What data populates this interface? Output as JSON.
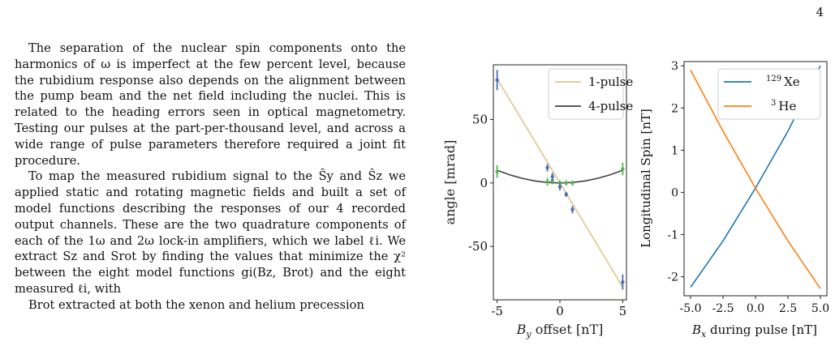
{
  "page_number": "4",
  "paragraphs": [
    "The separation of the nuclear spin components onto the harmonics of ω is imperfect at the few percent level, because the rubidium response also depends on the alignment between the pump beam and the net field including the nuclei. This is related to the heading errors seen in optical magnetometry. Testing our pulses at the part-per-thousand level, and across a wide range of pulse parameters therefore required a joint fit procedure.",
    "To map the measured rubidium signal to the Ŝy and Ŝz we applied static and rotating magnetic fields and built a set of model functions describing the responses of our 4 recorded output channels. These are the two quadrature components of each of the 1ω and 2ω lock-in amplifiers, which we label ℓi. We extract Sz and Srot by finding the values that minimize the χ² between the eight model functions gi(Bz, Brot) and the eight measured ℓi, with",
    "Brot extracted at both the xenon and helium precession"
  ],
  "colors": {
    "pulse1": "#e0c58a",
    "pulse4": "#404040",
    "errbar_blue": "#4a6fb5",
    "errbar_green": "#55b455",
    "xe": "#1f77b4",
    "he": "#ff7f0e"
  },
  "chart_data": [
    {
      "type": "line",
      "xlabel": "B_y offset [nT]",
      "ylabel": "angle [mrad]",
      "xlim": [
        -5.3,
        5.3
      ],
      "ylim": [
        -92,
        93
      ],
      "xticks": [
        -5,
        0,
        5
      ],
      "yticks": [
        -50,
        0,
        50
      ],
      "x_tick_labels": [
        "-5",
        "0",
        "5"
      ],
      "y_tick_labels": [
        "-50",
        "0",
        "50"
      ],
      "legend": "top-right",
      "series": [
        {
          "name": "1-pulse",
          "x": [
            -5,
            5
          ],
          "y": [
            82,
            -82
          ]
        },
        {
          "name": "4-pulse",
          "x": [
            -5,
            -4,
            -3,
            -2,
            -1,
            0,
            1,
            2,
            3,
            4,
            5
          ],
          "y": [
            10,
            6.4,
            3.6,
            1.6,
            0.4,
            0,
            0.4,
            1.6,
            3.6,
            6.4,
            10
          ]
        }
      ],
      "data_points_1pulse": [
        {
          "x": -5,
          "y": 81,
          "err": 8
        },
        {
          "x": -1,
          "y": 12,
          "err": 3
        },
        {
          "x": -0.6,
          "y": 5,
          "err": 3
        },
        {
          "x": 0,
          "y": -3,
          "err": 3
        },
        {
          "x": 0.5,
          "y": -9,
          "err": 2
        },
        {
          "x": 1,
          "y": -21,
          "err": 3
        },
        {
          "x": 5,
          "y": -78,
          "err": 6
        }
      ],
      "data_points_4pulse": [
        {
          "x": -5,
          "y": 9,
          "err": 5
        },
        {
          "x": -1,
          "y": 1,
          "err": 3
        },
        {
          "x": -0.6,
          "y": 2,
          "err": 3
        },
        {
          "x": 0,
          "y": 0,
          "err": 2
        },
        {
          "x": 0.5,
          "y": 0,
          "err": 2
        },
        {
          "x": 1,
          "y": 0,
          "err": 2
        },
        {
          "x": 5,
          "y": 11,
          "err": 5
        }
      ]
    },
    {
      "type": "line",
      "xlabel": "B_x during pulse [nT]",
      "ylabel": "Longitudinal Spin [nT]",
      "xlim": [
        -5.5,
        5.5
      ],
      "ylim": [
        -2.45,
        3.1
      ],
      "xticks": [
        -5,
        -2.5,
        0,
        2.5,
        5
      ],
      "yticks": [
        -2,
        -1,
        0,
        1,
        2,
        3
      ],
      "x_tick_labels": [
        "-5.0",
        "-2.5",
        "0.0",
        "2.5",
        "5.0"
      ],
      "y_tick_labels": [
        "-2",
        "-1",
        "0",
        "1",
        "2",
        "3"
      ],
      "legend": "top-right",
      "series": [
        {
          "name": "129 Xe",
          "x": [
            -5,
            -2.5,
            0,
            2.5,
            5
          ],
          "y": [
            -2.25,
            -1.15,
            0.1,
            1.45,
            3.0
          ]
        },
        {
          "name": "3 He",
          "x": [
            -5,
            -2.5,
            0,
            2.5,
            5
          ],
          "y": [
            2.9,
            1.45,
            0.1,
            -1.15,
            -2.28
          ]
        }
      ]
    }
  ],
  "legend1": [
    "1-pulse",
    "4-pulse"
  ],
  "legend2": {
    "xe_sup": "129",
    "xe": "Xe",
    "he_sup": "3",
    "he": "He"
  },
  "axis_labels": {
    "left_y": "angle [mrad]",
    "left_x_main": "B",
    "left_x_sub": "y",
    "left_x_rest": " offset [nT]",
    "right_y": "Longitudinal Spin [nT]",
    "right_x_main": "B",
    "right_x_sub": "x",
    "right_x_rest": " during pulse [nT]"
  }
}
